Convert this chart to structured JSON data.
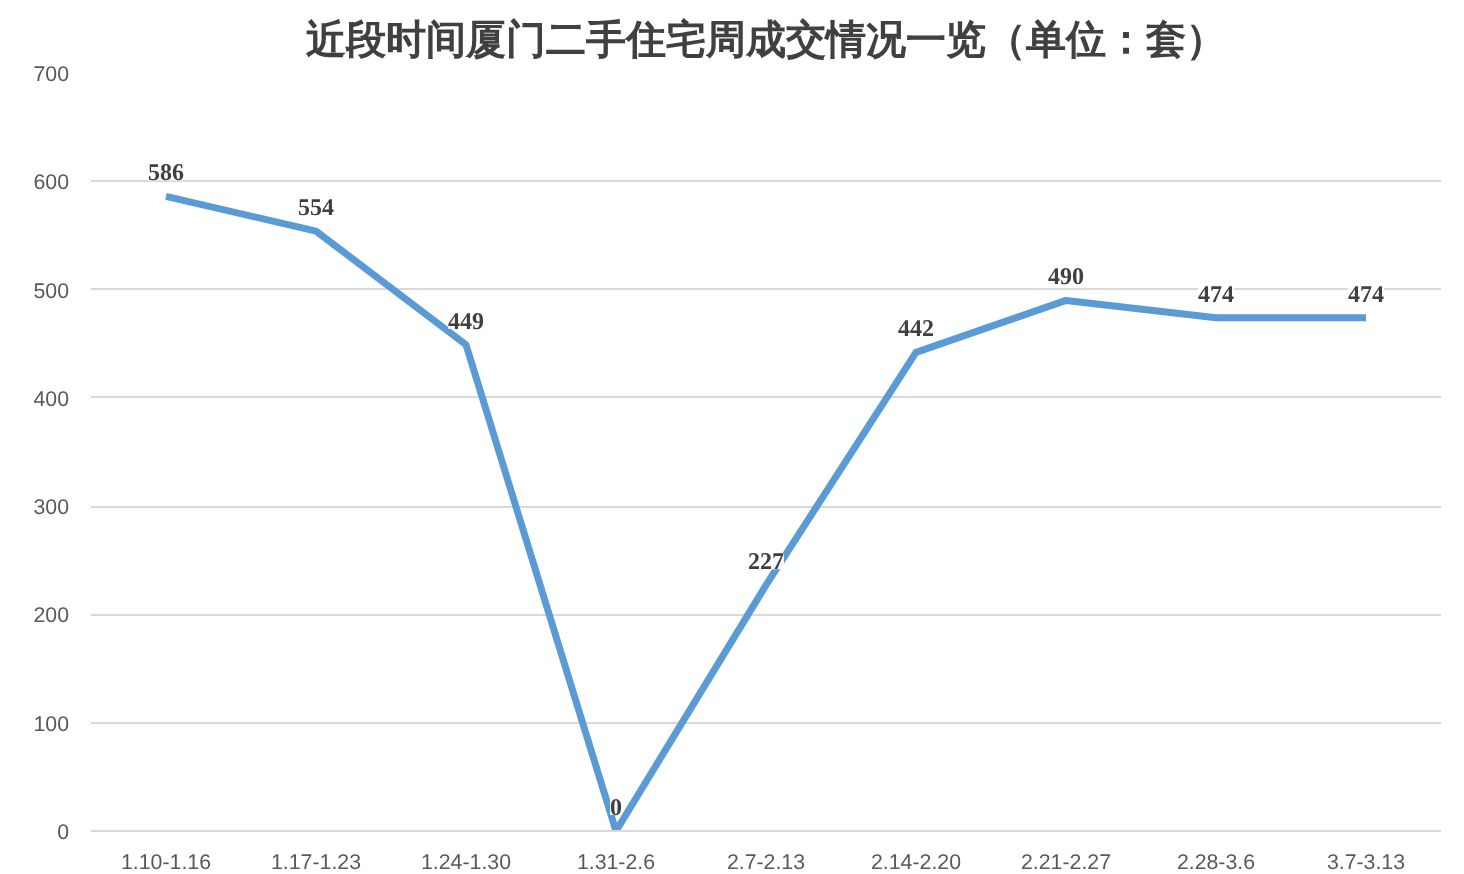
{
  "chart_data": {
    "type": "line",
    "title": "近段时间厦门二手住宅周成交情况一览（单位：套）",
    "categories": [
      "1.10-1.16",
      "1.17-1.23",
      "1.24-1.30",
      "1.31-2.6",
      "2.7-2.13",
      "2.14-2.20",
      "2.21-2.27",
      "2.28-3.6",
      "3.7-3.13"
    ],
    "series": [
      {
        "color": "#5b9bd5",
        "values": [
          586,
          554,
          449,
          0,
          227,
          442,
          490,
          474,
          474
        ]
      }
    ],
    "ylim": [
      0,
      700
    ],
    "yticks": [
      0,
      100,
      200,
      300,
      400,
      500,
      600,
      700
    ],
    "grid": "y",
    "data_labels": true,
    "marker": "none",
    "line_style": "solid"
  }
}
